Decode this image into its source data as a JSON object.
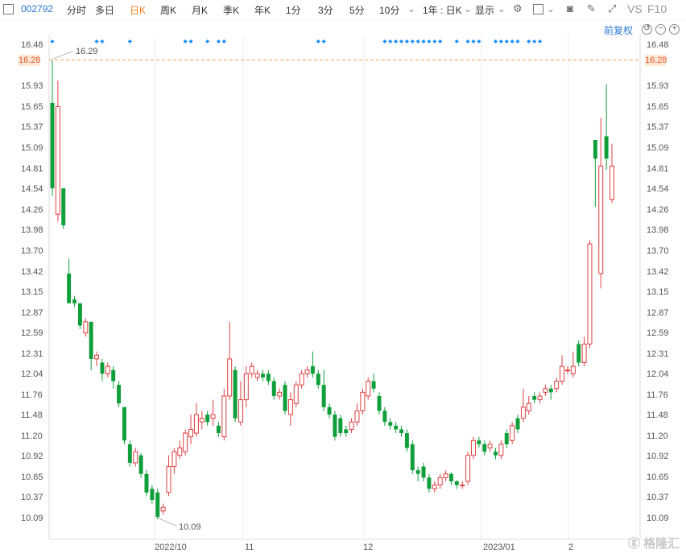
{
  "toolbar": {
    "stock_code": "002792",
    "periods": [
      "分时",
      "多日",
      "日K",
      "周K",
      "月K",
      "季K",
      "年K",
      "1分",
      "3分",
      "5分",
      "10分"
    ],
    "active_period": "日K",
    "range_select": "1年 : 日K",
    "display_label": "显示",
    "vs_label": "VS",
    "f10_label": "F10"
  },
  "adjust_label": "前复权",
  "price_axis": {
    "ticks": [
      "16.48",
      "16.28",
      "15.93",
      "15.65",
      "15.37",
      "15.09",
      "14.81",
      "14.54",
      "14.26",
      "13.98",
      "13.70",
      "13.42",
      "13.15",
      "12.87",
      "12.59",
      "12.31",
      "12.04",
      "11.76",
      "11.48",
      "11.20",
      "10.92",
      "10.65",
      "10.37",
      "10.09"
    ],
    "current_price": "16.28"
  },
  "x_axis_labels": [
    "2022/10",
    "11",
    "12",
    "2023/01",
    "2"
  ],
  "annotations": {
    "high": "16.29",
    "low": "10.09"
  },
  "watermark": "格隆汇",
  "colors": {
    "up": "#e04040",
    "down": "#0f9f3a",
    "accent": "#f07d1a",
    "blue": "#2a76d2",
    "marker": "#1e90ff"
  },
  "chart_data": {
    "type": "candlestick",
    "ylim": [
      10.0,
      16.55
    ],
    "candles": [
      {
        "o": 15.7,
        "c": 14.55,
        "h": 16.28,
        "l": 14.45
      },
      {
        "o": 14.2,
        "c": 15.65,
        "h": 16.0,
        "l": 14.1
      },
      {
        "o": 14.55,
        "c": 14.05,
        "h": 14.55,
        "l": 14.0
      },
      {
        "o": 13.4,
        "c": 13.0,
        "h": 13.6,
        "l": 13.0
      },
      {
        "o": 13.05,
        "c": 13.0,
        "h": 13.1,
        "l": 12.95
      },
      {
        "o": 13.0,
        "c": 12.7,
        "h": 13.0,
        "l": 12.65
      },
      {
        "o": 12.6,
        "c": 12.75,
        "h": 12.8,
        "l": 12.55
      },
      {
        "o": 12.75,
        "c": 12.25,
        "h": 12.75,
        "l": 12.1
      },
      {
        "o": 12.25,
        "c": 12.3,
        "h": 12.35,
        "l": 12.15
      },
      {
        "o": 12.2,
        "c": 12.05,
        "h": 12.25,
        "l": 11.95
      },
      {
        "o": 12.05,
        "c": 12.15,
        "h": 12.2,
        "l": 12.0
      },
      {
        "o": 12.1,
        "c": 11.95,
        "h": 12.15,
        "l": 11.85
      },
      {
        "o": 11.9,
        "c": 11.65,
        "h": 11.95,
        "l": 11.6
      },
      {
        "o": 11.6,
        "c": 11.15,
        "h": 11.6,
        "l": 11.1
      },
      {
        "o": 11.1,
        "c": 10.85,
        "h": 11.15,
        "l": 10.8
      },
      {
        "o": 10.85,
        "c": 11.0,
        "h": 11.05,
        "l": 10.8
      },
      {
        "o": 10.95,
        "c": 10.7,
        "h": 10.98,
        "l": 10.65
      },
      {
        "o": 10.7,
        "c": 10.45,
        "h": 10.75,
        "l": 10.4
      },
      {
        "o": 10.5,
        "c": 10.35,
        "h": 10.55,
        "l": 10.3
      },
      {
        "o": 10.45,
        "c": 10.12,
        "h": 10.5,
        "l": 10.09
      },
      {
        "o": 10.2,
        "c": 10.25,
        "h": 10.3,
        "l": 10.15
      },
      {
        "o": 10.45,
        "c": 10.8,
        "h": 10.95,
        "l": 10.4
      },
      {
        "o": 10.8,
        "c": 11.0,
        "h": 11.05,
        "l": 10.7
      },
      {
        "o": 10.95,
        "c": 11.05,
        "h": 11.15,
        "l": 10.9
      },
      {
        "o": 11.0,
        "c": 11.25,
        "h": 11.3,
        "l": 10.95
      },
      {
        "o": 11.2,
        "c": 11.3,
        "h": 11.5,
        "l": 11.1
      },
      {
        "o": 11.25,
        "c": 11.5,
        "h": 11.65,
        "l": 11.2
      },
      {
        "o": 11.4,
        "c": 11.45,
        "h": 11.55,
        "l": 11.3
      },
      {
        "o": 11.5,
        "c": 11.4,
        "h": 11.55,
        "l": 11.35
      },
      {
        "o": 11.45,
        "c": 11.5,
        "h": 11.7,
        "l": 11.35
      },
      {
        "o": 11.35,
        "c": 11.25,
        "h": 11.4,
        "l": 11.2
      },
      {
        "o": 11.2,
        "c": 11.75,
        "h": 11.85,
        "l": 11.15
      },
      {
        "o": 11.75,
        "c": 12.25,
        "h": 12.75,
        "l": 11.7
      },
      {
        "o": 12.1,
        "c": 11.45,
        "h": 12.15,
        "l": 11.4
      },
      {
        "o": 11.4,
        "c": 11.7,
        "h": 11.95,
        "l": 11.35
      },
      {
        "o": 11.7,
        "c": 12.05,
        "h": 12.15,
        "l": 11.6
      },
      {
        "o": 12.05,
        "c": 12.15,
        "h": 12.2,
        "l": 12.0
      },
      {
        "o": 12.0,
        "c": 12.05,
        "h": 12.1,
        "l": 11.95
      },
      {
        "o": 12.05,
        "c": 12.0,
        "h": 12.1,
        "l": 11.95
      },
      {
        "o": 12.05,
        "c": 11.95,
        "h": 12.1,
        "l": 11.9
      },
      {
        "o": 11.95,
        "c": 11.75,
        "h": 12.0,
        "l": 11.7
      },
      {
        "o": 11.75,
        "c": 11.8,
        "h": 11.85,
        "l": 11.7
      },
      {
        "o": 11.9,
        "c": 11.55,
        "h": 11.95,
        "l": 11.5
      },
      {
        "o": 11.5,
        "c": 11.7,
        "h": 11.8,
        "l": 11.35
      },
      {
        "o": 11.65,
        "c": 11.9,
        "h": 11.95,
        "l": 11.6
      },
      {
        "o": 11.9,
        "c": 12.05,
        "h": 12.1,
        "l": 11.85
      },
      {
        "o": 12.05,
        "c": 12.1,
        "h": 12.15,
        "l": 12.0
      },
      {
        "o": 12.15,
        "c": 12.05,
        "h": 12.35,
        "l": 12.0
      },
      {
        "o": 12.05,
        "c": 11.9,
        "h": 12.1,
        "l": 11.85
      },
      {
        "o": 11.9,
        "c": 11.6,
        "h": 12.1,
        "l": 11.55
      },
      {
        "o": 11.6,
        "c": 11.5,
        "h": 11.65,
        "l": 11.45
      },
      {
        "o": 11.5,
        "c": 11.2,
        "h": 11.55,
        "l": 11.15
      },
      {
        "o": 11.45,
        "c": 11.25,
        "h": 11.5,
        "l": 11.2
      },
      {
        "o": 11.3,
        "c": 11.25,
        "h": 11.35,
        "l": 11.2
      },
      {
        "o": 11.3,
        "c": 11.4,
        "h": 11.45,
        "l": 11.25
      },
      {
        "o": 11.4,
        "c": 11.55,
        "h": 11.65,
        "l": 11.35
      },
      {
        "o": 11.55,
        "c": 11.8,
        "h": 11.85,
        "l": 11.5
      },
      {
        "o": 11.75,
        "c": 11.95,
        "h": 12.0,
        "l": 11.7
      },
      {
        "o": 11.95,
        "c": 11.85,
        "h": 12.05,
        "l": 11.8
      },
      {
        "o": 11.75,
        "c": 11.55,
        "h": 11.8,
        "l": 11.5
      },
      {
        "o": 11.55,
        "c": 11.4,
        "h": 11.6,
        "l": 11.35
      },
      {
        "o": 11.4,
        "c": 11.35,
        "h": 11.45,
        "l": 11.3
      },
      {
        "o": 11.35,
        "c": 11.3,
        "h": 11.4,
        "l": 11.25
      },
      {
        "o": 11.3,
        "c": 11.25,
        "h": 11.35,
        "l": 11.2
      },
      {
        "o": 11.25,
        "c": 11.05,
        "h": 11.3,
        "l": 11.0
      },
      {
        "o": 11.1,
        "c": 10.75,
        "h": 11.15,
        "l": 10.7
      },
      {
        "o": 10.75,
        "c": 10.7,
        "h": 10.8,
        "l": 10.6
      },
      {
        "o": 10.8,
        "c": 10.65,
        "h": 10.85,
        "l": 10.6
      },
      {
        "o": 10.65,
        "c": 10.5,
        "h": 10.7,
        "l": 10.45
      },
      {
        "o": 10.5,
        "c": 10.55,
        "h": 10.6,
        "l": 10.45
      },
      {
        "o": 10.55,
        "c": 10.65,
        "h": 10.7,
        "l": 10.5
      },
      {
        "o": 10.65,
        "c": 10.7,
        "h": 10.75,
        "l": 10.6
      },
      {
        "o": 10.7,
        "c": 10.6,
        "h": 10.72,
        "l": 10.55
      },
      {
        "o": 10.6,
        "c": 10.55,
        "h": 10.62,
        "l": 10.5
      },
      {
        "o": 10.55,
        "c": 10.55,
        "h": 10.6,
        "l": 10.5
      },
      {
        "o": 10.6,
        "c": 10.95,
        "h": 11.0,
        "l": 10.55
      },
      {
        "o": 10.95,
        "c": 11.15,
        "h": 11.2,
        "l": 10.9
      },
      {
        "o": 11.15,
        "c": 11.1,
        "h": 11.2,
        "l": 11.05
      },
      {
        "o": 11.1,
        "c": 11.0,
        "h": 11.15,
        "l": 10.95
      },
      {
        "o": 11.05,
        "c": 11.1,
        "h": 11.15,
        "l": 11.0
      },
      {
        "o": 11.0,
        "c": 10.95,
        "h": 11.05,
        "l": 10.9
      },
      {
        "o": 10.95,
        "c": 11.1,
        "h": 11.15,
        "l": 10.9
      },
      {
        "o": 11.25,
        "c": 11.1,
        "h": 11.3,
        "l": 11.05
      },
      {
        "o": 11.15,
        "c": 11.35,
        "h": 11.4,
        "l": 11.1
      },
      {
        "o": 11.45,
        "c": 11.3,
        "h": 11.5,
        "l": 11.25
      },
      {
        "o": 11.45,
        "c": 11.6,
        "h": 11.85,
        "l": 11.4
      },
      {
        "o": 11.55,
        "c": 11.65,
        "h": 11.75,
        "l": 11.5
      },
      {
        "o": 11.75,
        "c": 11.7,
        "h": 11.8,
        "l": 11.65
      },
      {
        "o": 11.7,
        "c": 11.75,
        "h": 11.8,
        "l": 11.65
      },
      {
        "o": 11.8,
        "c": 11.85,
        "h": 11.9,
        "l": 11.75
      },
      {
        "o": 11.85,
        "c": 11.8,
        "h": 11.9,
        "l": 11.7
      },
      {
        "o": 11.85,
        "c": 11.95,
        "h": 12.0,
        "l": 11.8
      },
      {
        "o": 11.95,
        "c": 12.15,
        "h": 12.3,
        "l": 11.9
      },
      {
        "o": 12.1,
        "c": 12.1,
        "h": 12.15,
        "l": 12.05
      },
      {
        "o": 12.05,
        "c": 12.15,
        "h": 12.35,
        "l": 12.0
      },
      {
        "o": 12.45,
        "c": 12.2,
        "h": 12.5,
        "l": 12.15
      },
      {
        "o": 12.2,
        "c": 12.45,
        "h": 12.55,
        "l": 12.15
      },
      {
        "o": 12.45,
        "c": 13.8,
        "h": 13.85,
        "l": 12.4
      },
      {
        "o": 15.2,
        "c": 14.95,
        "h": 15.2,
        "l": 14.3
      },
      {
        "o": 13.4,
        "c": 14.85,
        "h": 15.5,
        "l": 13.2
      },
      {
        "o": 15.25,
        "c": 14.95,
        "h": 15.95,
        "l": 14.8
      },
      {
        "o": 14.4,
        "c": 14.85,
        "h": 15.15,
        "l": 14.35
      }
    ],
    "markers": [
      0,
      8,
      9,
      14,
      24,
      25,
      28,
      30,
      31,
      48,
      49,
      60,
      61,
      62,
      63,
      64,
      65,
      66,
      67,
      68,
      69,
      70,
      73,
      75,
      76,
      77,
      80,
      81,
      82,
      83,
      84,
      86,
      87,
      88
    ]
  }
}
